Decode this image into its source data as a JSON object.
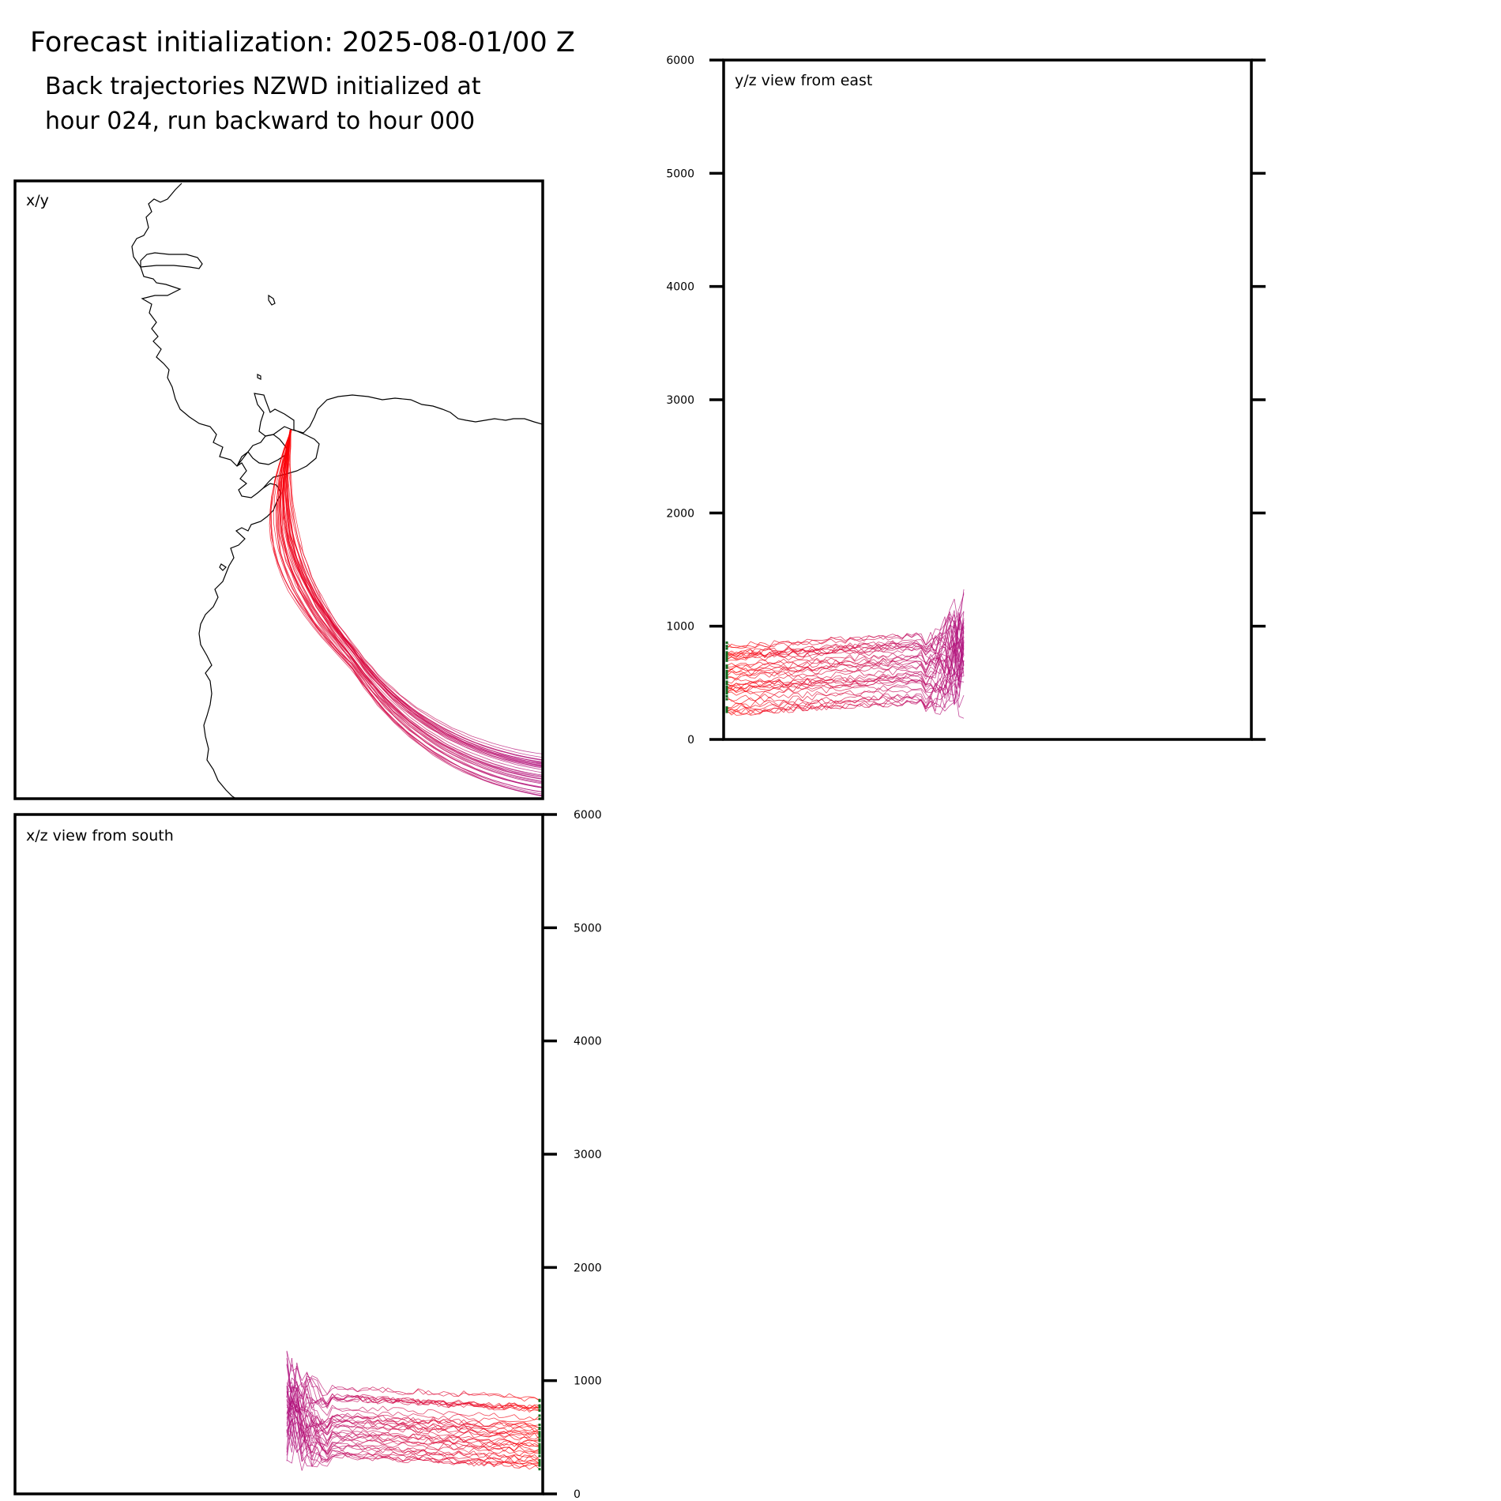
{
  "header": {
    "title": "Forecast initialization: 2025-08-01/00 Z",
    "subtitle_lines": [
      "Back trajectories NZWD initialized at",
      "hour 024, run backward to hour 000"
    ]
  },
  "colors": {
    "trajectory_recent": "#ff0000",
    "trajectory_old": "#b0127e",
    "start_point": "#0a6b1a",
    "coastline": "#000000"
  },
  "chart_data": [
    {
      "id": "xy",
      "type": "line",
      "panel_label": "x/y",
      "description_units": "map plan view",
      "series_count": 40,
      "endpoint_hour": 24,
      "startpoint_hour": 0
    },
    {
      "id": "yz",
      "type": "line",
      "panel_label": "y/z view from east",
      "ylim": [
        0,
        6000
      ],
      "yticks": [
        "0",
        "1000",
        "2000",
        "3000",
        "4000",
        "5000",
        "6000"
      ],
      "series_count": 40
    },
    {
      "id": "xz",
      "type": "line",
      "panel_label": "x/z view from south",
      "ylim": [
        0,
        6000
      ],
      "yticks": [
        "0",
        "1000",
        "2000",
        "3000",
        "4000",
        "5000",
        "6000"
      ],
      "series_count": 40
    }
  ]
}
